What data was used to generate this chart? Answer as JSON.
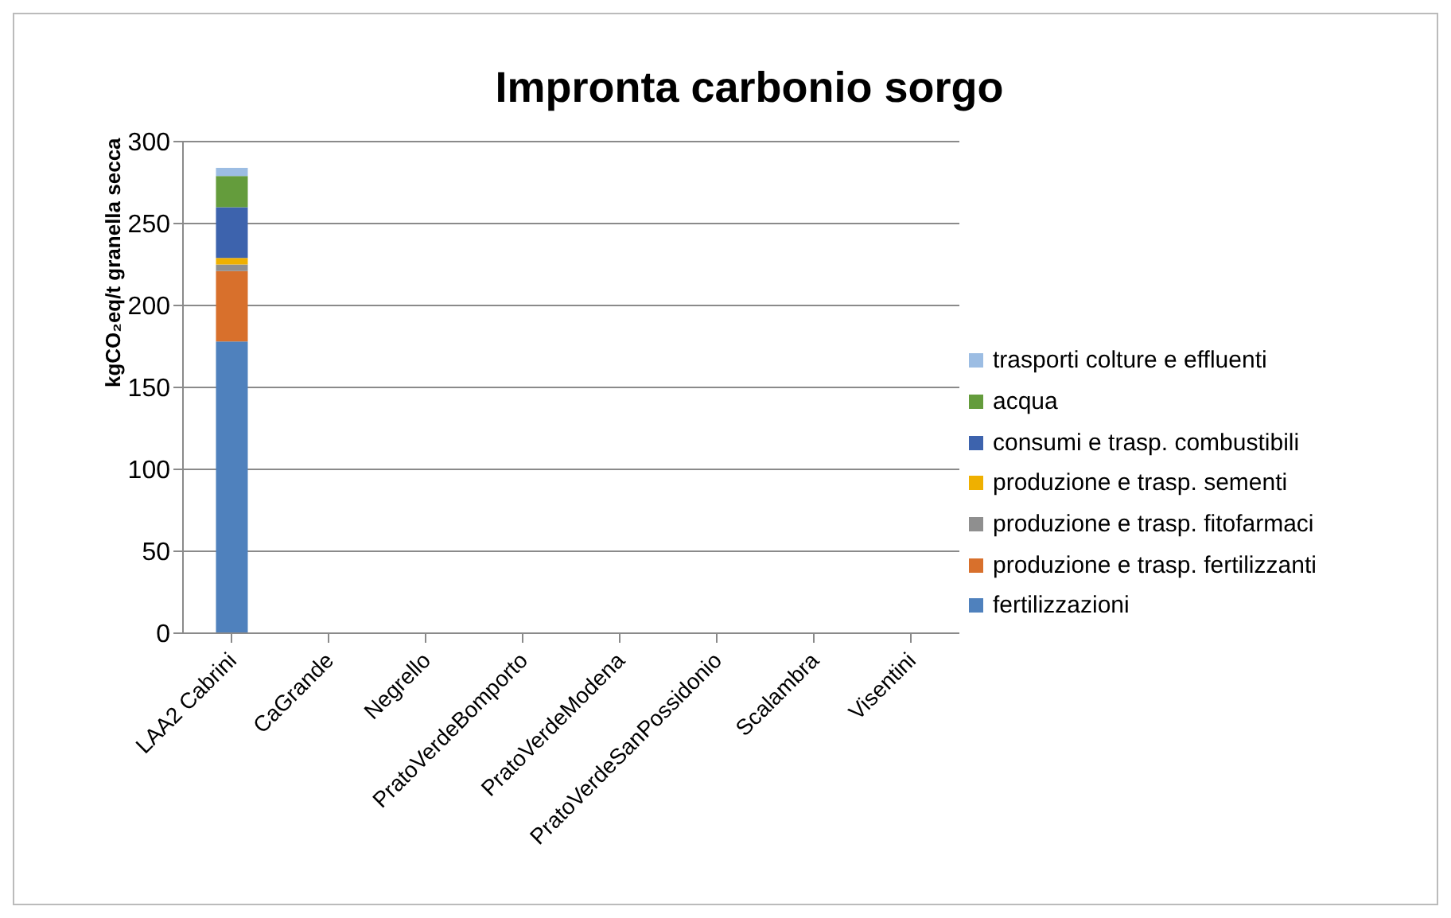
{
  "chart_data": {
    "type": "bar",
    "title": "Impronta carbonio sorgo",
    "ylabel": "kgCO₂eq/t granella secca",
    "stacked": true,
    "categories": [
      "LAA2 Cabrini",
      "CaGrande",
      "Negrello",
      "PratoVerdeBomporto",
      "PratoVerdeModena",
      "PratoVerdeSanPossidonio",
      "Scalambra",
      "Visentini"
    ],
    "series": [
      {
        "name": "fertilizzazioni",
        "color": "#4f81bd",
        "values": [
          178,
          null,
          null,
          null,
          null,
          null,
          null,
          null
        ]
      },
      {
        "name": "produzione e trasp. fertilizzanti",
        "color": "#d8702c",
        "values": [
          43,
          null,
          null,
          null,
          null,
          null,
          null,
          null
        ]
      },
      {
        "name": "produzione e trasp. fitofarmaci",
        "color": "#8f8f8f",
        "values": [
          4,
          null,
          null,
          null,
          null,
          null,
          null,
          null
        ]
      },
      {
        "name": "produzione e trasp. sementi",
        "color": "#efb000",
        "values": [
          4,
          null,
          null,
          null,
          null,
          null,
          null,
          null
        ]
      },
      {
        "name": "consumi e trasp. combustibili",
        "color": "#3d63ad",
        "values": [
          31,
          null,
          null,
          null,
          null,
          null,
          null,
          null
        ]
      },
      {
        "name": "acqua",
        "color": "#649c3c",
        "values": [
          19,
          null,
          null,
          null,
          null,
          null,
          null,
          null
        ]
      },
      {
        "name": "trasporti colture e effluenti",
        "color": "#9cbde3",
        "values": [
          5,
          null,
          null,
          null,
          null,
          null,
          null,
          null
        ]
      }
    ],
    "ylim": [
      0,
      300
    ],
    "yticks": [
      0,
      50,
      100,
      150,
      200,
      250,
      300
    ],
    "grid": "y",
    "legend": "right"
  }
}
